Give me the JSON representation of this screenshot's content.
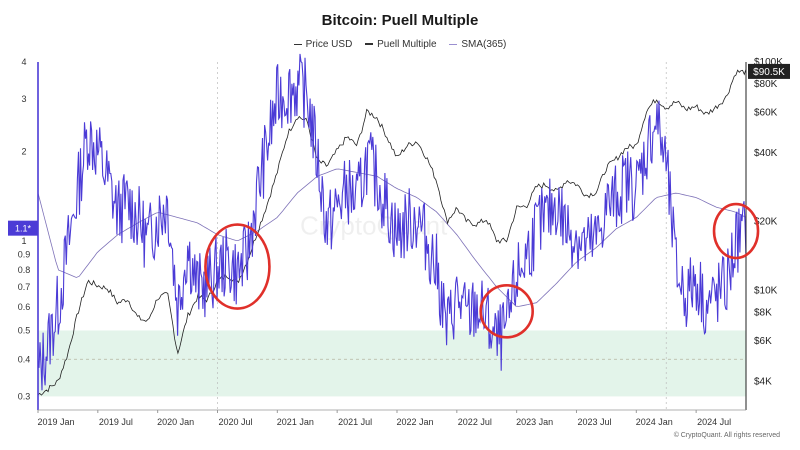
{
  "chart_data": {
    "type": "line",
    "title": "Bitcoin: Puell Multiple",
    "watermark": "CryptoQuant",
    "credit": "© CryptoQuant. All rights reserved",
    "x_range": [
      "2019-01",
      "2024-12"
    ],
    "x_tick_labels": [
      "2019 Jan",
      "2019 Jul",
      "2020 Jan",
      "2020 Jul",
      "2021 Jan",
      "2021 Jul",
      "2022 Jan",
      "2022 Jul",
      "2023 Jan",
      "2023 Jul",
      "2024 Jan",
      "2024 Jul"
    ],
    "y_left": {
      "scale": "log",
      "range": [
        0.27,
        4.0
      ],
      "tick_labels": [
        "0.3",
        "0.4",
        "0.5",
        "0.6",
        "0.7",
        "0.8",
        "0.9",
        "1",
        "2",
        "3",
        "4"
      ],
      "ticks": [
        0.3,
        0.4,
        0.5,
        0.6,
        0.7,
        0.8,
        0.9,
        1,
        2,
        3,
        4
      ]
    },
    "y_right": {
      "scale": "log",
      "range": [
        3000,
        100000
      ],
      "tick_labels": [
        "$4K",
        "$6K",
        "$8K",
        "$10K",
        "$20K",
        "$40K",
        "$60K",
        "$80K",
        "$100K"
      ],
      "ticks": [
        4000,
        6000,
        8000,
        10000,
        20000,
        40000,
        60000,
        80000,
        100000
      ]
    },
    "current_puell_badge": "1.1*",
    "current_price_badge": "$90.5K",
    "shaded_band": {
      "from": 0.3,
      "to": 0.5,
      "color": "#e3f4ea"
    },
    "reference_line": {
      "value": 0.4,
      "style": "dashed"
    },
    "highlight_circles_at": [
      "2020-09",
      "2022-12",
      "2024-11"
    ],
    "colors": {
      "price": "#222222",
      "puell": "#4b3bd6",
      "sma": "#7e72b8",
      "highlight": "#e0302a",
      "badge_left": "#4b3bd6",
      "badge_right": "#222222"
    },
    "series": [
      {
        "name": "Price USD",
        "axis": "right",
        "x": [
          "2019-01",
          "2019-02",
          "2019-03",
          "2019-04",
          "2019-05",
          "2019-06",
          "2019-07",
          "2019-08",
          "2019-09",
          "2019-10",
          "2019-11",
          "2019-12",
          "2020-01",
          "2020-02",
          "2020-03",
          "2020-04",
          "2020-05",
          "2020-06",
          "2020-07",
          "2020-08",
          "2020-09",
          "2020-10",
          "2020-11",
          "2020-12",
          "2021-01",
          "2021-02",
          "2021-03",
          "2021-04",
          "2021-05",
          "2021-06",
          "2021-07",
          "2021-08",
          "2021-09",
          "2021-10",
          "2021-11",
          "2021-12",
          "2022-01",
          "2022-02",
          "2022-03",
          "2022-04",
          "2022-05",
          "2022-06",
          "2022-07",
          "2022-08",
          "2022-09",
          "2022-10",
          "2022-11",
          "2022-12",
          "2023-01",
          "2023-02",
          "2023-03",
          "2023-04",
          "2023-05",
          "2023-06",
          "2023-07",
          "2023-08",
          "2023-09",
          "2023-10",
          "2023-11",
          "2023-12",
          "2024-01",
          "2024-02",
          "2024-03",
          "2024-04",
          "2024-05",
          "2024-06",
          "2024-07",
          "2024-08",
          "2024-09",
          "2024-10",
          "2024-11",
          "2024-12"
        ],
        "values": [
          3500,
          3700,
          4000,
          5300,
          8000,
          11000,
          10500,
          10200,
          8800,
          9200,
          7600,
          7300,
          9300,
          9600,
          5300,
          7700,
          9400,
          9100,
          11000,
          11700,
          10800,
          13500,
          18000,
          24000,
          33000,
          48000,
          58000,
          55000,
          37000,
          35000,
          41000,
          47000,
          43000,
          61000,
          57000,
          47000,
          38000,
          43000,
          45000,
          38000,
          30000,
          20000,
          23000,
          20000,
          19500,
          20500,
          16500,
          16500,
          23000,
          23500,
          28500,
          29000,
          27000,
          30400,
          29200,
          26000,
          27000,
          34500,
          37700,
          42200,
          43000,
          61000,
          69000,
          63000,
          67000,
          62000,
          64000,
          59000,
          63500,
          70000,
          90500,
          90500
        ]
      },
      {
        "name": "Puell Multiple",
        "axis": "left",
        "x": [
          "2019-01",
          "2019-02",
          "2019-03",
          "2019-04",
          "2019-05",
          "2019-06",
          "2019-07",
          "2019-08",
          "2019-09",
          "2019-10",
          "2019-11",
          "2019-12",
          "2020-01",
          "2020-02",
          "2020-03",
          "2020-04",
          "2020-05",
          "2020-06",
          "2020-07",
          "2020-08",
          "2020-09",
          "2020-10",
          "2020-11",
          "2020-12",
          "2021-01",
          "2021-02",
          "2021-03",
          "2021-04",
          "2021-05",
          "2021-06",
          "2021-07",
          "2021-08",
          "2021-09",
          "2021-10",
          "2021-11",
          "2021-12",
          "2022-01",
          "2022-02",
          "2022-03",
          "2022-04",
          "2022-05",
          "2022-06",
          "2022-07",
          "2022-08",
          "2022-09",
          "2022-10",
          "2022-11",
          "2022-12",
          "2023-01",
          "2023-02",
          "2023-03",
          "2023-04",
          "2023-05",
          "2023-06",
          "2023-07",
          "2023-08",
          "2023-09",
          "2023-10",
          "2023-11",
          "2023-12",
          "2024-01",
          "2024-02",
          "2024-03",
          "2024-04",
          "2024-05",
          "2024-06",
          "2024-07",
          "2024-08",
          "2024-09",
          "2024-10",
          "2024-11",
          "2024-12"
        ],
        "values": [
          0.35,
          0.45,
          0.6,
          0.95,
          1.5,
          2.3,
          2.0,
          1.6,
          1.25,
          1.35,
          1.2,
          1.0,
          1.2,
          1.35,
          0.6,
          0.95,
          0.7,
          0.72,
          0.8,
          0.85,
          0.78,
          0.9,
          1.45,
          2.1,
          3.0,
          3.2,
          3.3,
          3.1,
          1.9,
          1.1,
          1.3,
          1.5,
          1.35,
          1.9,
          1.6,
          1.3,
          1.05,
          1.15,
          1.2,
          1.0,
          0.8,
          0.5,
          0.65,
          0.55,
          0.6,
          0.55,
          0.45,
          0.5,
          0.75,
          0.9,
          1.1,
          1.2,
          1.35,
          1.1,
          1.05,
          0.95,
          1.0,
          1.3,
          1.4,
          1.6,
          1.5,
          2.0,
          2.6,
          1.8,
          0.8,
          0.65,
          0.75,
          0.6,
          0.65,
          0.7,
          1.0,
          1.1
        ]
      },
      {
        "name": "SMA(365)",
        "axis": "left",
        "x": [
          "2019-01",
          "2019-03",
          "2019-05",
          "2019-07",
          "2019-09",
          "2019-11",
          "2020-01",
          "2020-03",
          "2020-05",
          "2020-07",
          "2020-09",
          "2020-11",
          "2021-01",
          "2021-03",
          "2021-05",
          "2021-07",
          "2021-09",
          "2021-11",
          "2022-01",
          "2022-03",
          "2022-05",
          "2022-07",
          "2022-09",
          "2022-11",
          "2023-01",
          "2023-03",
          "2023-05",
          "2023-07",
          "2023-09",
          "2023-11",
          "2024-01",
          "2024-03",
          "2024-05",
          "2024-07",
          "2024-09",
          "2024-11",
          "2024-12"
        ],
        "values": [
          1.45,
          0.8,
          0.75,
          0.92,
          1.05,
          1.15,
          1.25,
          1.2,
          1.15,
          1.05,
          1.0,
          1.08,
          1.2,
          1.45,
          1.65,
          1.75,
          1.7,
          1.65,
          1.5,
          1.4,
          1.25,
          1.05,
          0.85,
          0.7,
          0.6,
          0.62,
          0.72,
          0.85,
          0.95,
          1.1,
          1.2,
          1.4,
          1.45,
          1.4,
          1.3,
          1.25,
          1.2
        ]
      }
    ]
  }
}
